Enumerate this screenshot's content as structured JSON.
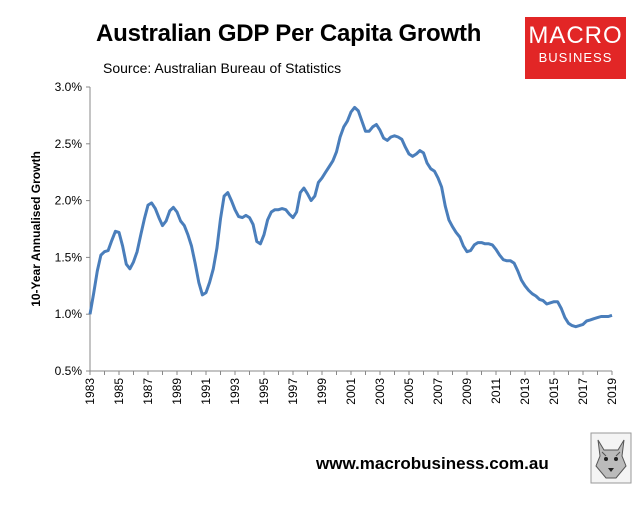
{
  "title": "Australian GDP Per Capita Growth",
  "subtitle": "Source: Australian Bureau of Statistics",
  "logo": {
    "line1": "MACRO",
    "line2": "BUSINESS"
  },
  "footer_url": "www.macrobusiness.com.au",
  "chart_data": {
    "type": "line",
    "title": "Australian GDP Per Capita Growth",
    "ylabel": "10-Year Annualised Growth",
    "xlabel": "",
    "xlim": [
      1983,
      2019
    ],
    "ylim": [
      0.5,
      3.0
    ],
    "yticks": [
      "0.5%",
      "1.0%",
      "1.5%",
      "2.0%",
      "2.5%",
      "3.0%"
    ],
    "xticks": [
      "1983",
      "1985",
      "1987",
      "1989",
      "1991",
      "1993",
      "1995",
      "1997",
      "1999",
      "2001",
      "2003",
      "2005",
      "2007",
      "2009",
      "2011",
      "2013",
      "2015",
      "2017",
      "2019"
    ],
    "grid": false,
    "line_color": "#4a7ebb",
    "series": [
      {
        "x": [
          1983.0,
          1983.25,
          1983.5,
          1983.75,
          1984.0,
          1984.25,
          1984.5,
          1984.75,
          1985.0,
          1985.25,
          1985.5,
          1985.75,
          1986.0,
          1986.25,
          1986.5,
          1986.75,
          1987.0,
          1987.25,
          1987.5,
          1987.75,
          1988.0,
          1988.25,
          1988.5,
          1988.75,
          1989.0,
          1989.25,
          1989.5,
          1989.75,
          1990.0,
          1990.25,
          1990.5,
          1990.75,
          1991.0,
          1991.25,
          1991.5,
          1991.75,
          1992.0,
          1992.25,
          1992.5,
          1992.75,
          1993.0,
          1993.25,
          1993.5,
          1993.75,
          1994.0,
          1994.25,
          1994.5,
          1994.75,
          1995.0,
          1995.25,
          1995.5,
          1995.75,
          1996.0,
          1996.25,
          1996.5,
          1996.75,
          1997.0,
          1997.25,
          1997.5,
          1997.75,
          1998.0,
          1998.25,
          1998.5,
          1998.75,
          1999.0,
          1999.25,
          1999.5,
          1999.75,
          2000.0,
          2000.25,
          2000.5,
          2000.75,
          2001.0,
          2001.25,
          2001.5,
          2001.75,
          2002.0,
          2002.25,
          2002.5,
          2002.75,
          2003.0,
          2003.25,
          2003.5,
          2003.75,
          2004.0,
          2004.25,
          2004.5,
          2004.75,
          2005.0,
          2005.25,
          2005.5,
          2005.75,
          2006.0,
          2006.25,
          2006.5,
          2006.75,
          2007.0,
          2007.25,
          2007.5,
          2007.75,
          2008.0,
          2008.25,
          2008.5,
          2008.75,
          2009.0,
          2009.25,
          2009.5,
          2009.75,
          2010.0,
          2010.25,
          2010.5,
          2010.75,
          2011.0,
          2011.25,
          2011.5,
          2011.75,
          2012.0,
          2012.25,
          2012.5,
          2012.75,
          2013.0,
          2013.25,
          2013.5,
          2013.75,
          2014.0,
          2014.25,
          2014.5,
          2014.75,
          2015.0,
          2015.25,
          2015.5,
          2015.75,
          2016.0,
          2016.25,
          2016.5,
          2016.75,
          2017.0,
          2017.25,
          2017.5,
          2017.75,
          2018.0,
          2018.25,
          2018.5,
          2018.75,
          2019.0
        ],
        "values": [
          1.0,
          1.18,
          1.38,
          1.52,
          1.55,
          1.56,
          1.65,
          1.73,
          1.72,
          1.6,
          1.44,
          1.4,
          1.46,
          1.55,
          1.7,
          1.84,
          1.96,
          1.98,
          1.93,
          1.85,
          1.78,
          1.82,
          1.91,
          1.94,
          1.9,
          1.82,
          1.78,
          1.7,
          1.6,
          1.45,
          1.28,
          1.17,
          1.19,
          1.28,
          1.4,
          1.58,
          1.84,
          2.04,
          2.07,
          2.0,
          1.92,
          1.86,
          1.85,
          1.87,
          1.85,
          1.79,
          1.64,
          1.62,
          1.7,
          1.83,
          1.9,
          1.92,
          1.92,
          1.93,
          1.92,
          1.88,
          1.85,
          1.9,
          2.07,
          2.11,
          2.06,
          2.0,
          2.04,
          2.16,
          2.2,
          2.25,
          2.3,
          2.35,
          2.43,
          2.56,
          2.65,
          2.7,
          2.78,
          2.82,
          2.79,
          2.7,
          2.61,
          2.61,
          2.65,
          2.67,
          2.62,
          2.55,
          2.53,
          2.56,
          2.57,
          2.56,
          2.54,
          2.47,
          2.41,
          2.39,
          2.41,
          2.44,
          2.42,
          2.33,
          2.28,
          2.26,
          2.2,
          2.12,
          1.95,
          1.83,
          1.77,
          1.72,
          1.68,
          1.6,
          1.55,
          1.56,
          1.61,
          1.63,
          1.63,
          1.62,
          1.62,
          1.61,
          1.57,
          1.52,
          1.48,
          1.47,
          1.47,
          1.45,
          1.38,
          1.3,
          1.25,
          1.21,
          1.18,
          1.16,
          1.13,
          1.12,
          1.09,
          1.1,
          1.11,
          1.11,
          1.05,
          0.97,
          0.92,
          0.9,
          0.89,
          0.9,
          0.91,
          0.94,
          0.95,
          0.96,
          0.97,
          0.98,
          0.98,
          0.98,
          0.99
        ]
      }
    ]
  }
}
